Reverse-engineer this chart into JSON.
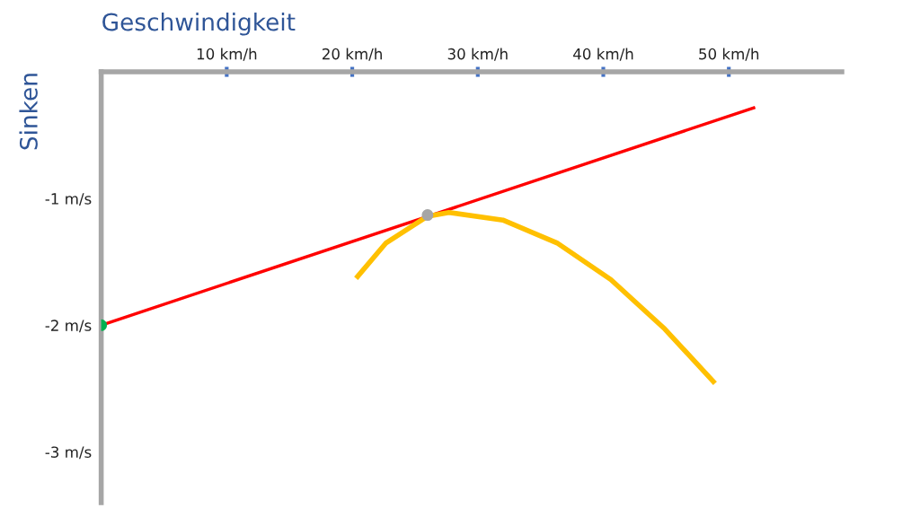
{
  "chart_data": {
    "type": "line",
    "xlabel": "Geschwindigkeit",
    "ylabel": "Sinken",
    "xlim": [
      0,
      59
    ],
    "ylim": [
      -3.4,
      0
    ],
    "xticks": [
      {
        "value": 10,
        "label": "10 km/h"
      },
      {
        "value": 20,
        "label": "20 km/h"
      },
      {
        "value": 30,
        "label": "30 km/h"
      },
      {
        "value": 40,
        "label": "40 km/h"
      },
      {
        "value": 50,
        "label": "50 km/h"
      }
    ],
    "yticks": [
      {
        "value": -1,
        "label": "-1 m/s"
      },
      {
        "value": -2,
        "label": "-2 m/s"
      },
      {
        "value": -3,
        "label": "-3 m/s"
      }
    ],
    "grid": false,
    "series": [
      {
        "color": "#ff0000",
        "x": [
          0,
          52.1
        ],
        "values": [
          -2,
          -0.28
        ]
      },
      {
        "color": "#ffc000",
        "x": [
          20.3,
          22.7,
          26.0,
          27.7,
          32.0,
          36.3,
          40.6,
          44.9,
          48.9
        ],
        "values": [
          -1.63,
          -1.35,
          -1.14,
          -1.11,
          -1.17,
          -1.35,
          -1.64,
          -2.03,
          -2.46
        ]
      },
      {
        "type": "scatter",
        "marker": "circle",
        "colors": [
          "#00b050",
          "#a6a6a6"
        ],
        "x": [
          0,
          26.0
        ],
        "values": [
          -2,
          -1.13
        ]
      }
    ]
  }
}
